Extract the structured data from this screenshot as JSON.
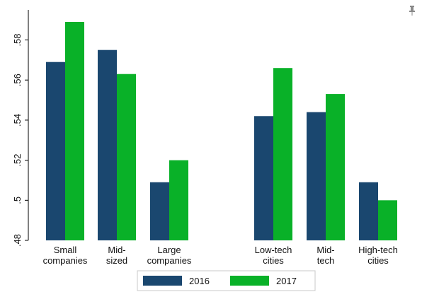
{
  "chart_data": {
    "type": "bar",
    "groups": [
      [
        "Small companies",
        "Mid-sized",
        "Large companies"
      ],
      [
        "Low-tech cities",
        "Mid-tech",
        "High-tech cities"
      ]
    ],
    "categories": [
      "Small companies",
      "Mid-sized",
      "Large companies",
      "Low-tech cities",
      "Mid-tech",
      "High-tech cities"
    ],
    "category_lines": [
      [
        "Small",
        "companies"
      ],
      [
        "Mid-",
        "sized"
      ],
      [
        "Large",
        "companies"
      ],
      [
        "Low-tech",
        "cities"
      ],
      [
        "Mid-",
        "tech"
      ],
      [
        "High-tech",
        "cities"
      ]
    ],
    "series": [
      {
        "name": "2016",
        "color": "#1a476f",
        "values": [
          0.569,
          0.575,
          0.509,
          0.542,
          0.544,
          0.509
        ]
      },
      {
        "name": "2017",
        "color": "#09b128",
        "values": [
          0.589,
          0.563,
          0.52,
          0.566,
          0.553,
          0.5
        ]
      }
    ],
    "ylim": [
      0.48,
      0.595
    ],
    "yticks": [
      0.48,
      0.5,
      0.52,
      0.54,
      0.56,
      0.58
    ],
    "ytick_labels": [
      ".48",
      ".5",
      ".52",
      ".54",
      ".56",
      ".58"
    ],
    "xlabel": "",
    "ylabel": "",
    "grid": false,
    "legend_position": "bottom"
  },
  "toolbar": {
    "pin_icon": "pin-icon"
  }
}
